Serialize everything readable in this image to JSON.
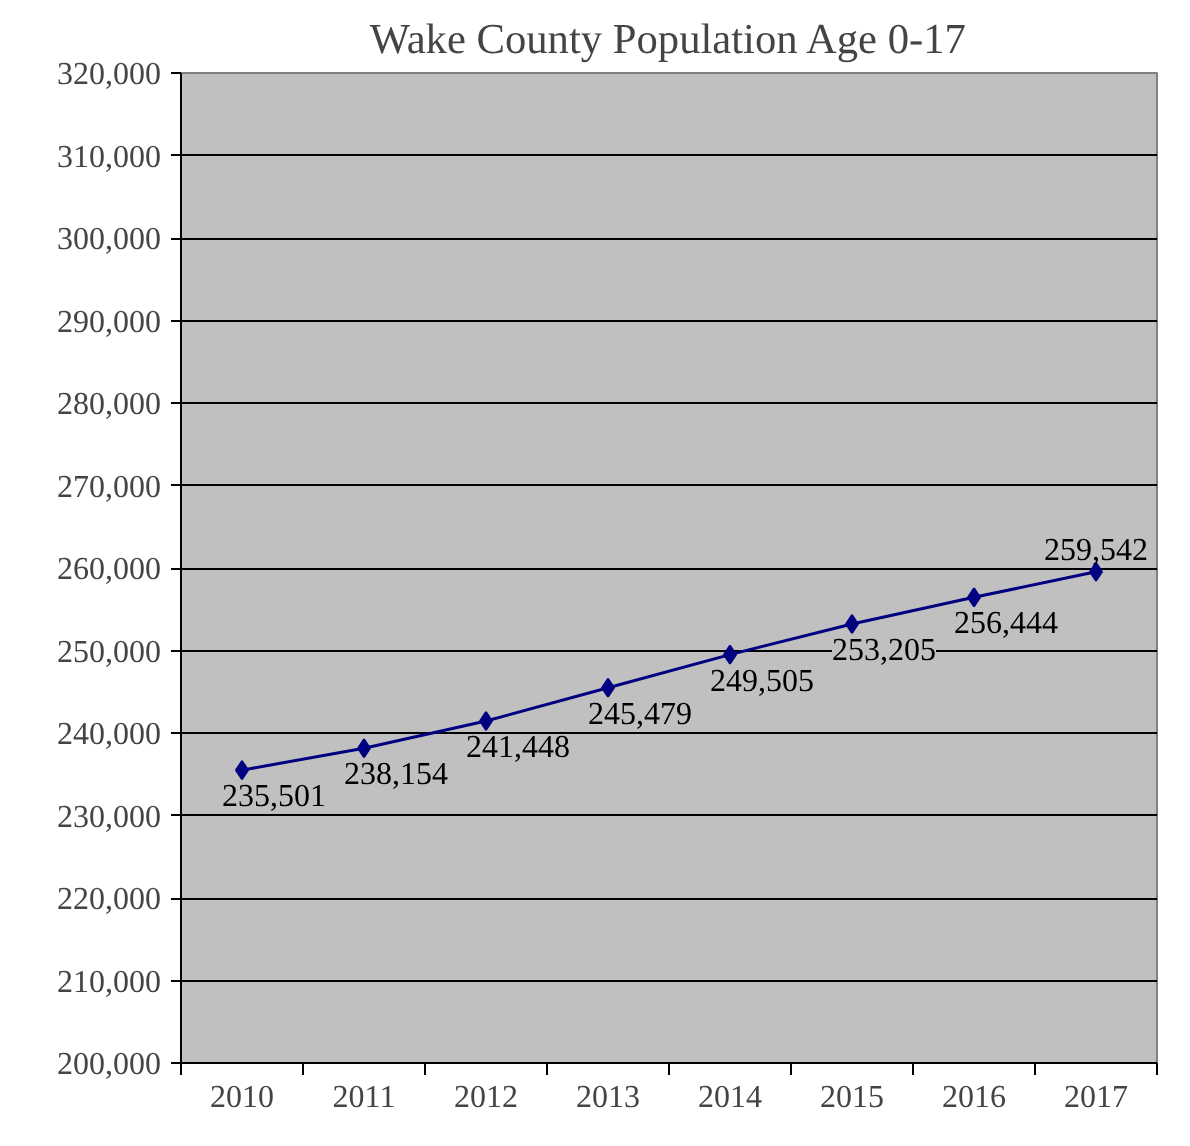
{
  "chart_data": {
    "type": "line",
    "title": "Wake County Population Age 0-17",
    "categories": [
      "2010",
      "2011",
      "2012",
      "2013",
      "2014",
      "2015",
      "2016",
      "2017"
    ],
    "series": [
      {
        "color": "#000080",
        "values": [
          235501,
          238154,
          241448,
          245479,
          249505,
          253205,
          256444,
          259542
        ]
      }
    ],
    "ylim": [
      200000,
      320000
    ],
    "yticks": [
      {
        "value": 200000,
        "label": "200,000"
      },
      {
        "value": 210000,
        "label": "210,000"
      },
      {
        "value": 220000,
        "label": "220,000"
      },
      {
        "value": 230000,
        "label": "230,000"
      },
      {
        "value": 240000,
        "label": "240,000"
      },
      {
        "value": 250000,
        "label": "250,000"
      },
      {
        "value": 260000,
        "label": "260,000"
      },
      {
        "value": 270000,
        "label": "270,000"
      },
      {
        "value": 280000,
        "label": "280,000"
      },
      {
        "value": 290000,
        "label": "290,000"
      },
      {
        "value": 300000,
        "label": "300,000"
      },
      {
        "value": 310000,
        "label": "310,000"
      },
      {
        "value": 320000,
        "label": "320,000"
      }
    ],
    "value_labels": [
      "235,501",
      "238,154",
      "241,448",
      "245,479",
      "249,505",
      "253,205",
      "256,444",
      "259,542"
    ],
    "grid": "y",
    "marker": "diamond",
    "line_style": "solid"
  }
}
